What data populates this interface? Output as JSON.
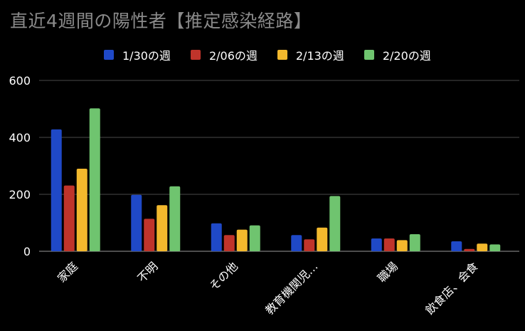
{
  "chart_data": {
    "type": "bar",
    "title": "直近4週間の陽性者【推定感染経路】",
    "categories": [
      "家庭",
      "不明",
      "その他",
      "教育機関児…",
      "職場",
      "飲食店、会食"
    ],
    "series": [
      {
        "name": "1/30の週",
        "color": "#1f49c7",
        "values": [
          428,
          198,
          98,
          57,
          45,
          35
        ]
      },
      {
        "name": "2/06の週",
        "color": "#c0342b",
        "values": [
          231,
          114,
          57,
          42,
          45,
          8
        ]
      },
      {
        "name": "2/13の週",
        "color": "#f3b92d",
        "values": [
          290,
          162,
          76,
          83,
          39,
          27
        ]
      },
      {
        "name": "2/20の週",
        "color": "#6fc46f",
        "values": [
          502,
          228,
          91,
          194,
          60,
          24
        ]
      }
    ],
    "ylim": [
      0,
      600
    ],
    "yticks": [
      0,
      200,
      400,
      600
    ],
    "grid": true,
    "legend_position": "top"
  }
}
